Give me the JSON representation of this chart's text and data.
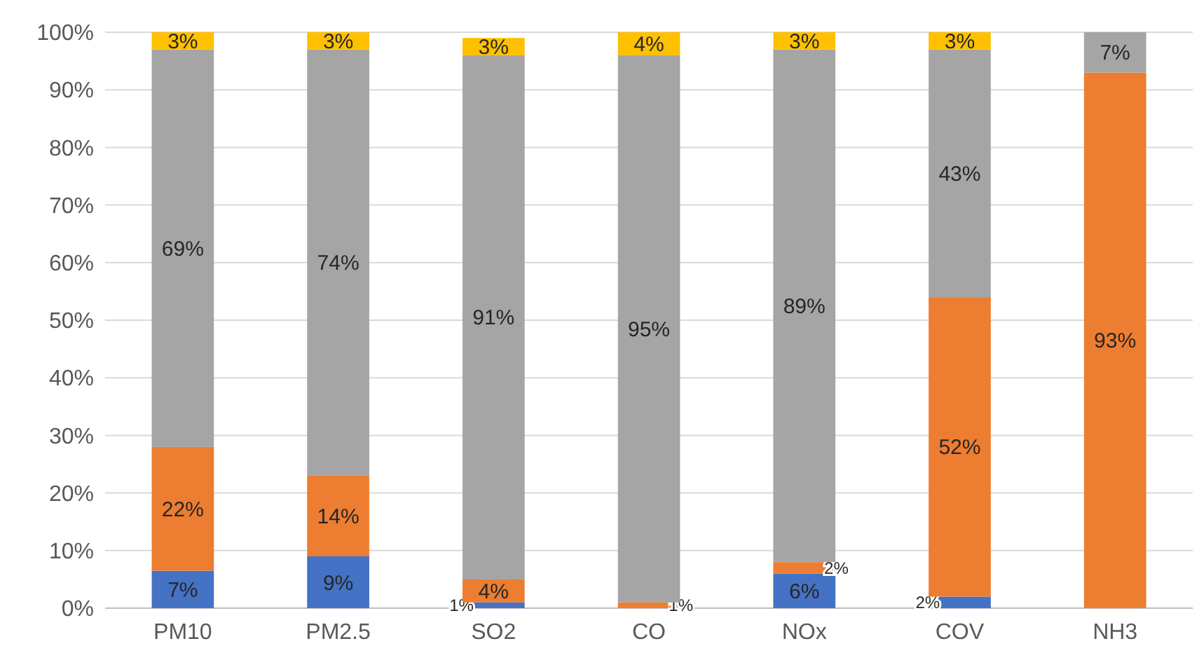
{
  "chart_data": {
    "type": "bar",
    "stacked": true,
    "categories": [
      "PM10",
      "PM2.5",
      "SO2",
      "CO",
      "NOx",
      "COV",
      "NH3"
    ],
    "series": [
      {
        "color": "#4472c4",
        "values": [
          6.5,
          9,
          1,
          0,
          6,
          2,
          0
        ],
        "value_labels": [
          "7%",
          "9%",
          "1%",
          null,
          "6%",
          "2%",
          null
        ]
      },
      {
        "color": "#ed7d31",
        "values": [
          21.5,
          14,
          4,
          1,
          2,
          52,
          93
        ],
        "value_labels": [
          "22%",
          "14%",
          "4%",
          "1%",
          "2%",
          "52%",
          "93%"
        ]
      },
      {
        "color": "#a5a5a5",
        "values": [
          69,
          74,
          91,
          95,
          89,
          43,
          7
        ],
        "value_labels": [
          "69%",
          "74%",
          "91%",
          "95%",
          "89%",
          "43%",
          "7%"
        ]
      },
      {
        "color": "#ffc000",
        "values": [
          3,
          3,
          3,
          4,
          3,
          3,
          0
        ],
        "value_labels": [
          "3%",
          "3%",
          "3%",
          "4%",
          "3%",
          "3%",
          null
        ]
      }
    ],
    "ylim": [
      0,
      100
    ],
    "yticks": [
      {
        "value": 0,
        "label": "0%"
      },
      {
        "value": 10,
        "label": "10%"
      },
      {
        "value": 20,
        "label": "20%"
      },
      {
        "value": 30,
        "label": "30%"
      },
      {
        "value": 40,
        "label": "40%"
      },
      {
        "value": 50,
        "label": "50%"
      },
      {
        "value": 60,
        "label": "60%"
      },
      {
        "value": 70,
        "label": "70%"
      },
      {
        "value": 80,
        "label": "80%"
      },
      {
        "value": 90,
        "label": "90%"
      },
      {
        "value": 100,
        "label": "100%"
      }
    ],
    "grid": "y"
  }
}
